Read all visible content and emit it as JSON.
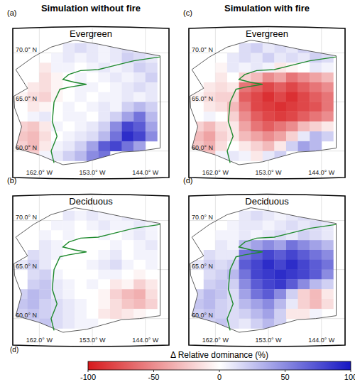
{
  "figure": {
    "columns": [
      "Simulation without fire",
      "Simulation with fire"
    ],
    "annotation": "(d)",
    "xlim": [
      -166.5,
      -140
    ],
    "ylim": [
      57.3,
      72.5
    ],
    "lon_edges": [
      -166,
      -164,
      -162,
      -160,
      -158,
      -156,
      -154,
      -152,
      -150,
      -148,
      -146,
      -144,
      -142
    ],
    "lat_edges": [
      71,
      70,
      69,
      68,
      67,
      66,
      65,
      64,
      63,
      62,
      61,
      60,
      59
    ],
    "lat_ticks": [
      {
        "value": 70,
        "label": "70.0° N"
      },
      {
        "value": 65,
        "label": "65.0° N"
      },
      {
        "value": 60,
        "label": "60.0° N"
      }
    ],
    "lon_ticks": [
      {
        "value": -162,
        "label": "162.0° W"
      },
      {
        "value": -153,
        "label": "153.0° W"
      },
      {
        "value": -144,
        "label": "144.0° W"
      }
    ],
    "colorbar": {
      "label": "Δ Relative dominance (%)",
      "range": [
        -100,
        100
      ],
      "ticks": [
        -100,
        -50,
        0,
        50,
        100
      ]
    }
  },
  "chart_data": [
    {
      "type": "heatmap",
      "label": "(a)",
      "title": "Evergreen",
      "column": 0,
      "cells": [
        [
          null,
          null,
          null,
          null,
          10,
          15,
          10,
          5,
          10,
          15,
          10,
          null
        ],
        [
          null,
          null,
          null,
          5,
          10,
          5,
          10,
          5,
          10,
          20,
          15,
          10
        ],
        [
          null,
          null,
          -10,
          5,
          5,
          0,
          5,
          10,
          5,
          10,
          20,
          15
        ],
        [
          null,
          null,
          -15,
          -5,
          0,
          5,
          0,
          5,
          10,
          5,
          10,
          20
        ],
        [
          null,
          -10,
          -15,
          -5,
          0,
          5,
          5,
          0,
          5,
          10,
          15,
          10
        ],
        [
          -5,
          -15,
          -20,
          -5,
          0,
          5,
          0,
          5,
          5,
          10,
          5,
          10
        ],
        [
          null,
          -10,
          -5,
          0,
          5,
          0,
          5,
          10,
          5,
          20,
          30,
          20
        ],
        [
          null,
          5,
          10,
          0,
          5,
          5,
          0,
          10,
          20,
          40,
          60,
          30
        ],
        [
          -20,
          -25,
          -10,
          5,
          0,
          5,
          10,
          20,
          50,
          80,
          70,
          40
        ],
        [
          -25,
          -30,
          -15,
          0,
          5,
          10,
          15,
          30,
          60,
          90,
          80,
          50
        ],
        [
          -20,
          -30,
          -10,
          5,
          10,
          20,
          40,
          70,
          80,
          60,
          40,
          null
        ],
        [
          -15,
          -20,
          5,
          10,
          20,
          30,
          50,
          60,
          null,
          null,
          null,
          null
        ]
      ]
    },
    {
      "type": "heatmap",
      "label": "(b)",
      "title": "Deciduous",
      "column": 0,
      "cells": [
        [
          null,
          null,
          null,
          null,
          10,
          5,
          10,
          5,
          5,
          10,
          5,
          null
        ],
        [
          null,
          null,
          null,
          5,
          5,
          0,
          5,
          10,
          5,
          5,
          10,
          5
        ],
        [
          null,
          null,
          5,
          0,
          5,
          0,
          0,
          5,
          0,
          5,
          10,
          5
        ],
        [
          null,
          null,
          10,
          5,
          0,
          0,
          0,
          0,
          5,
          0,
          5,
          10
        ],
        [
          null,
          15,
          10,
          5,
          0,
          0,
          0,
          5,
          10,
          0,
          5,
          5
        ],
        [
          10,
          20,
          10,
          0,
          0,
          0,
          5,
          10,
          15,
          5,
          0,
          5
        ],
        [
          null,
          15,
          20,
          5,
          0,
          0,
          0,
          5,
          5,
          0,
          -5,
          0
        ],
        [
          null,
          20,
          25,
          10,
          5,
          0,
          5,
          0,
          -10,
          -5,
          -20,
          -10
        ],
        [
          20,
          30,
          25,
          10,
          5,
          0,
          0,
          -5,
          -20,
          -30,
          -35,
          -15
        ],
        [
          25,
          30,
          20,
          15,
          10,
          5,
          0,
          -5,
          -15,
          -25,
          -30,
          -20
        ],
        [
          20,
          25,
          20,
          15,
          10,
          5,
          0,
          -10,
          -15,
          -10,
          -5,
          null
        ],
        [
          15,
          20,
          25,
          15,
          10,
          5,
          5,
          0,
          null,
          null,
          null,
          null
        ]
      ]
    },
    {
      "type": "heatmap",
      "label": "(c)",
      "title": "Evergreen",
      "column": 1,
      "cells": [
        [
          null,
          null,
          null,
          null,
          15,
          20,
          10,
          15,
          10,
          20,
          15,
          null
        ],
        [
          null,
          null,
          null,
          10,
          15,
          10,
          20,
          10,
          15,
          10,
          20,
          15
        ],
        [
          null,
          null,
          -5,
          10,
          5,
          10,
          5,
          -10,
          -5,
          0,
          10,
          5
        ],
        [
          null,
          null,
          -10,
          0,
          -20,
          -30,
          -50,
          -40,
          -60,
          -50,
          -40,
          -30
        ],
        [
          null,
          -10,
          -15,
          -10,
          -60,
          -70,
          -80,
          -70,
          -80,
          -70,
          -60,
          -50
        ],
        [
          -5,
          -15,
          -20,
          -20,
          -70,
          -80,
          -90,
          -80,
          -90,
          -80,
          -70,
          -60
        ],
        [
          null,
          -10,
          -15,
          -30,
          -60,
          -80,
          -85,
          -90,
          -85,
          -80,
          -75,
          -60
        ],
        [
          null,
          5,
          0,
          -20,
          -50,
          -70,
          -80,
          -85,
          -80,
          -70,
          -60,
          -50
        ],
        [
          -20,
          -30,
          -15,
          -10,
          -40,
          -60,
          -70,
          -60,
          -50,
          -30,
          -20,
          -10
        ],
        [
          -30,
          -40,
          -20,
          -10,
          -30,
          -40,
          -50,
          -40,
          -20,
          10,
          30,
          20
        ],
        [
          -25,
          -35,
          -15,
          0,
          -10,
          -20,
          -30,
          -10,
          20,
          40,
          30,
          null
        ],
        [
          -20,
          -25,
          5,
          10,
          5,
          -10,
          10,
          20,
          null,
          null,
          null,
          null
        ]
      ]
    },
    {
      "type": "heatmap",
      "label": "(d)",
      "title": "Deciduous",
      "column": 1,
      "cells": [
        [
          null,
          null,
          null,
          null,
          10,
          15,
          10,
          5,
          10,
          15,
          10,
          null
        ],
        [
          null,
          null,
          null,
          5,
          10,
          10,
          5,
          10,
          15,
          10,
          15,
          10
        ],
        [
          null,
          null,
          5,
          5,
          10,
          5,
          10,
          15,
          10,
          20,
          15,
          10
        ],
        [
          null,
          null,
          10,
          5,
          30,
          40,
          50,
          40,
          60,
          50,
          40,
          30
        ],
        [
          null,
          15,
          10,
          10,
          60,
          70,
          80,
          70,
          80,
          70,
          60,
          50
        ],
        [
          10,
          20,
          15,
          20,
          70,
          80,
          90,
          80,
          90,
          80,
          70,
          60
        ],
        [
          null,
          15,
          20,
          30,
          60,
          80,
          85,
          90,
          85,
          80,
          70,
          50
        ],
        [
          null,
          20,
          25,
          20,
          50,
          70,
          80,
          85,
          70,
          50,
          30,
          20
        ],
        [
          20,
          30,
          25,
          15,
          40,
          60,
          70,
          50,
          20,
          -20,
          -30,
          -10
        ],
        [
          25,
          30,
          20,
          15,
          30,
          40,
          50,
          30,
          10,
          -20,
          -30,
          -15
        ],
        [
          20,
          25,
          20,
          15,
          20,
          30,
          40,
          20,
          -10,
          -10,
          5,
          null
        ],
        [
          15,
          20,
          25,
          15,
          10,
          20,
          30,
          20,
          null,
          null,
          null,
          null
        ]
      ]
    }
  ]
}
